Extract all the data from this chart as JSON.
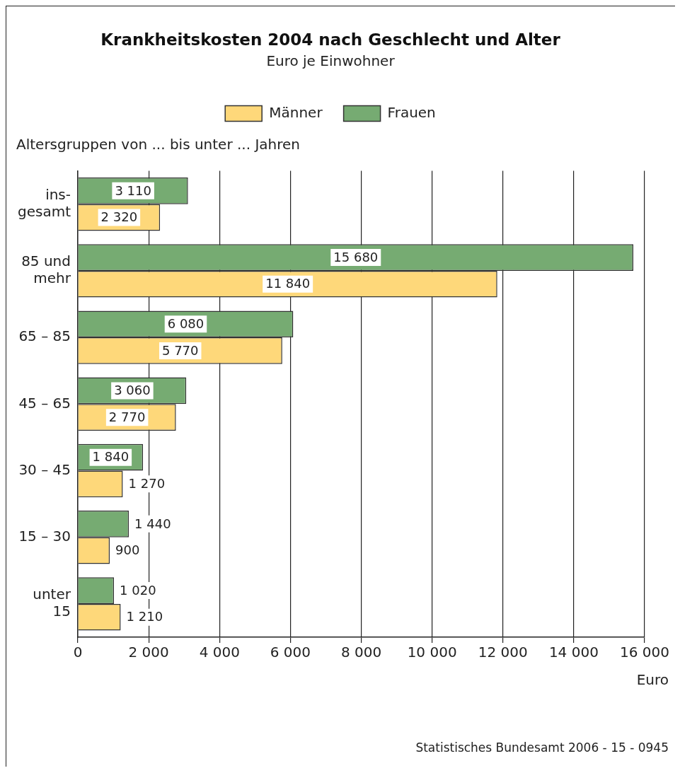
{
  "chart_data": {
    "type": "bar",
    "orientation": "horizontal",
    "title": "Krankheitskosten 2004 nach Geschlecht und Alter",
    "subtitle": "Euro je Einwohner",
    "ylabel": "Altersgruppen von ... bis unter ... Jahren",
    "xlabel": "Euro",
    "categories": [
      "ins-\ngesamt",
      "85 und\nmehr",
      "65 – 85",
      "45 – 65",
      "30 – 45",
      "15 – 30",
      "unter\n15"
    ],
    "series": [
      {
        "name": "Männer",
        "color": "#fed87a",
        "values": [
          2320,
          11840,
          5770,
          2770,
          1270,
          900,
          1210
        ]
      },
      {
        "name": "Frauen",
        "color": "#76ab72",
        "values": [
          3110,
          15680,
          6080,
          3060,
          1840,
          1440,
          1020
        ]
      }
    ],
    "xlim": [
      0,
      16000
    ],
    "xticks": [
      0,
      {
        "value": 2000,
        "label": "2 000"
      },
      {
        "value": 4000,
        "label": "4 000"
      },
      {
        "value": 6000,
        "label": "6 000"
      },
      {
        "value": 8000,
        "label": "8 000"
      },
      {
        "value": 10000,
        "label": "10 000"
      },
      {
        "value": 12000,
        "label": "12 000"
      },
      {
        "value": 14000,
        "label": "14 000"
      },
      {
        "value": 16000,
        "label": "16 000"
      }
    ],
    "grid": "x",
    "legend": "top",
    "data_labels": true,
    "annotations": [
      "Statistisches Bundesamt 2006 - 15 - 0945"
    ]
  }
}
